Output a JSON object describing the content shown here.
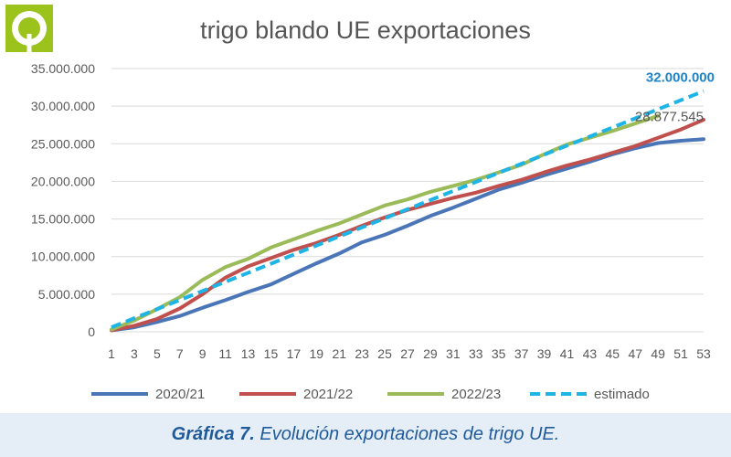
{
  "logo": {
    "icon": "green-circle-logo-icon",
    "color": "#9bc31c"
  },
  "caption": {
    "bold": "Gráfica 7.",
    "text": " Evolución exportaciones de trigo UE."
  },
  "colors": {
    "s2020": "#4a76b8",
    "s2021": "#c0504d",
    "s2022": "#9bbb59",
    "estimado": "#1eb4e6",
    "annotation_blue": "#1f83c8",
    "annotation_gray": "#555555",
    "caption": "#1f5a9a"
  },
  "chart_data": {
    "type": "line",
    "title": "trigo blando UE exportaciones",
    "xlabel": "",
    "ylabel": "",
    "ylim": [
      0,
      35000000
    ],
    "y_ticks": [
      "0",
      "5.000.000",
      "10.000.000",
      "15.000.000",
      "20.000.000",
      "25.000.000",
      "30.000.000",
      "35.000.000"
    ],
    "y_tick_values": [
      0,
      5000000,
      10000000,
      15000000,
      20000000,
      25000000,
      30000000,
      35000000
    ],
    "x_ticks": [
      "1",
      "3",
      "5",
      "7",
      "9",
      "11",
      "13",
      "15",
      "17",
      "19",
      "21",
      "23",
      "25",
      "27",
      "29",
      "31",
      "33",
      "35",
      "37",
      "39",
      "41",
      "43",
      "45",
      "47",
      "49",
      "51",
      "53"
    ],
    "x_tick_values": [
      1,
      3,
      5,
      7,
      9,
      11,
      13,
      15,
      17,
      19,
      21,
      23,
      25,
      27,
      29,
      31,
      33,
      35,
      37,
      39,
      41,
      43,
      45,
      47,
      49,
      51,
      53
    ],
    "xlim": [
      1,
      53
    ],
    "grid": "horizontal",
    "legend_position": "bottom",
    "series": [
      {
        "name": "2020/21",
        "color": "#4a76b8",
        "dash": false,
        "x": [
          1,
          3,
          5,
          7,
          9,
          11,
          13,
          15,
          17,
          19,
          21,
          23,
          25,
          27,
          29,
          31,
          33,
          35,
          37,
          39,
          41,
          43,
          45,
          47,
          49,
          51,
          53
        ],
        "y": [
          200000,
          600000,
          1300000,
          2100000,
          3200000,
          4200000,
          5300000,
          6300000,
          7700000,
          9100000,
          10400000,
          11900000,
          12900000,
          14100000,
          15400000,
          16500000,
          17700000,
          18900000,
          19800000,
          20800000,
          21700000,
          22600000,
          23600000,
          24400000,
          25100000,
          25400000,
          25600000
        ]
      },
      {
        "name": "2021/22",
        "color": "#c0504d",
        "dash": false,
        "x": [
          1,
          3,
          5,
          7,
          9,
          11,
          13,
          15,
          17,
          19,
          21,
          23,
          25,
          27,
          29,
          31,
          33,
          35,
          37,
          39,
          41,
          43,
          45,
          47,
          49,
          51,
          53
        ],
        "y": [
          200000,
          800000,
          1700000,
          3100000,
          5000000,
          7200000,
          8700000,
          9800000,
          10900000,
          11800000,
          12900000,
          14100000,
          15200000,
          16200000,
          17000000,
          17800000,
          18500000,
          19400000,
          20200000,
          21200000,
          22100000,
          22900000,
          23800000,
          24700000,
          25800000,
          26900000,
          28200000
        ]
      },
      {
        "name": "2022/23",
        "color": "#9bbb59",
        "dash": false,
        "x": [
          1,
          3,
          5,
          7,
          9,
          11,
          13,
          15,
          17,
          19,
          21,
          23,
          25,
          27,
          29,
          31,
          33,
          35,
          37,
          39,
          41,
          43,
          45,
          47,
          49
        ],
        "y": [
          300000,
          1500000,
          3000000,
          4600000,
          6900000,
          8600000,
          9700000,
          11200000,
          12300000,
          13400000,
          14400000,
          15600000,
          16800000,
          17600000,
          18600000,
          19400000,
          20200000,
          21200000,
          22200000,
          23600000,
          24900000,
          25800000,
          26700000,
          27700000,
          28700000
        ]
      },
      {
        "name": "estimado",
        "color": "#1eb4e6",
        "dash": true,
        "x": [
          1,
          53
        ],
        "y": [
          600000,
          32000000
        ]
      }
    ],
    "annotations": [
      {
        "text": "32.000.000",
        "x": 53,
        "y": 32000000,
        "color": "#1f83c8",
        "bold": true
      },
      {
        "text": "28.877.545",
        "x": 53,
        "y": 28877545,
        "color": "#555555",
        "bold": false
      }
    ]
  }
}
